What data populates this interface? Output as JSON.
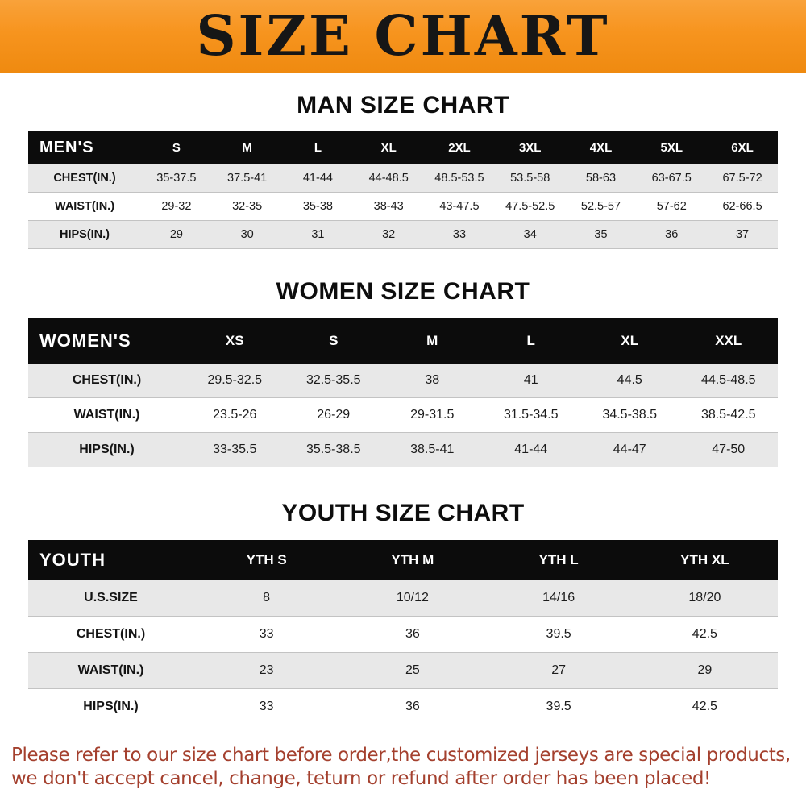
{
  "banner": {
    "title": "SIZE CHART"
  },
  "colors": {
    "banner_orange": "#F7941E",
    "table_header_black": "#0C0C0C",
    "row_stripe_gray": "#E8E8E8",
    "footer_red": "#A4402E"
  },
  "chart_data": [
    {
      "type": "table",
      "title": "MAN SIZE CHART",
      "corner_label": "MEN'S",
      "columns": [
        "S",
        "M",
        "L",
        "XL",
        "2XL",
        "3XL",
        "4XL",
        "5XL",
        "6XL"
      ],
      "rows": [
        {
          "label": "CHEST(IN.)",
          "values": [
            "35-37.5",
            "37.5-41",
            "41-44",
            "44-48.5",
            "48.5-53.5",
            "53.5-58",
            "58-63",
            "63-67.5",
            "67.5-72"
          ]
        },
        {
          "label": "WAIST(IN.)",
          "values": [
            "29-32",
            "32-35",
            "35-38",
            "38-43",
            "43-47.5",
            "47.5-52.5",
            "52.5-57",
            "57-62",
            "62-66.5"
          ]
        },
        {
          "label": "HIPS(IN.)",
          "values": [
            "29",
            "30",
            "31",
            "32",
            "33",
            "34",
            "35",
            "36",
            "37"
          ]
        }
      ]
    },
    {
      "type": "table",
      "title": "WOMEN SIZE CHART",
      "corner_label": "WOMEN'S",
      "columns": [
        "XS",
        "S",
        "M",
        "L",
        "XL",
        "XXL"
      ],
      "rows": [
        {
          "label": "CHEST(IN.)",
          "values": [
            "29.5-32.5",
            "32.5-35.5",
            "38",
            "41",
            "44.5",
            "44.5-48.5"
          ]
        },
        {
          "label": "WAIST(IN.)",
          "values": [
            "23.5-26",
            "26-29",
            "29-31.5",
            "31.5-34.5",
            "34.5-38.5",
            "38.5-42.5"
          ]
        },
        {
          "label": "HIPS(IN.)",
          "values": [
            "33-35.5",
            "35.5-38.5",
            "38.5-41",
            "41-44",
            "44-47",
            "47-50"
          ]
        }
      ]
    },
    {
      "type": "table",
      "title": "YOUTH SIZE CHART",
      "corner_label": "YOUTH",
      "columns": [
        "YTH S",
        "YTH M",
        "YTH L",
        "YTH XL"
      ],
      "rows": [
        {
          "label": "U.S.SIZE",
          "values": [
            "8",
            "10/12",
            "14/16",
            "18/20"
          ]
        },
        {
          "label": "CHEST(IN.)",
          "values": [
            "33",
            "36",
            "39.5",
            "42.5"
          ]
        },
        {
          "label": "WAIST(IN.)",
          "values": [
            "23",
            "25",
            "27",
            "29"
          ]
        },
        {
          "label": "HIPS(IN.)",
          "values": [
            "33",
            "36",
            "39.5",
            "42.5"
          ]
        }
      ]
    }
  ],
  "footer": {
    "line1": "Please refer to our size chart before order,the customized jerseys are special products,",
    "line2": "we don't accept cancel, change, teturn or refund after order has been placed!"
  }
}
